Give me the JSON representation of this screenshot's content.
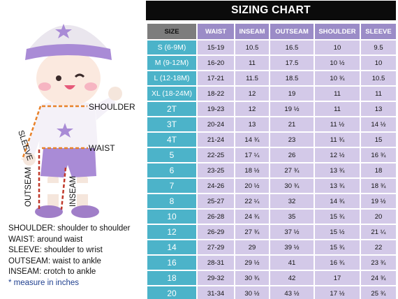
{
  "title": "SIZING CHART",
  "headers": [
    "SIZE",
    "WAIST",
    "INSEAM",
    "OUTSEAM",
    "SHOULDER",
    "SLEEVE"
  ],
  "rows": [
    [
      "S (6-9M)",
      "15-19",
      "10.5",
      "16.5",
      "10",
      "9.5"
    ],
    [
      "M (9-12M)",
      "16-20",
      "11",
      "17.5",
      "10 ½",
      "10"
    ],
    [
      "L (12-18M)",
      "17-21",
      "11.5",
      "18.5",
      "10 ¾",
      "10.5"
    ],
    [
      "XL (18-24M)",
      "18-22",
      "12",
      "19",
      "11",
      "11"
    ],
    [
      "2T",
      "19-23",
      "12",
      "19 ½",
      "11",
      "13"
    ],
    [
      "3T",
      "20-24",
      "13",
      "21",
      "11 ½",
      "14 ½"
    ],
    [
      "4T",
      "21-24",
      "14 ¾",
      "23",
      "11 ¾",
      "15"
    ],
    [
      "5",
      "22-25",
      "17 ¼",
      "26",
      "12 ½",
      "16 ¾"
    ],
    [
      "6",
      "23-25",
      "18 ½",
      "27 ¾",
      "13 ¾",
      "18"
    ],
    [
      "7",
      "24-26",
      "20 ½",
      "30 ¾",
      "13 ¾",
      "18 ¾"
    ],
    [
      "8",
      "25-27",
      "22 ¼",
      "32",
      "14 ¾",
      "19 ½"
    ],
    [
      "10",
      "26-28",
      "24 ¾",
      "35",
      "15 ¾",
      "20"
    ],
    [
      "12",
      "26-29",
      "27 ¾",
      "37 ½",
      "15 ½",
      "21 ¼"
    ],
    [
      "14",
      "27-29",
      "29",
      "39 ½",
      "15 ¾",
      "22"
    ],
    [
      "16",
      "28-31",
      "29 ½",
      "41",
      "16 ¾",
      "23 ¾"
    ],
    [
      "18",
      "29-32",
      "30 ¾",
      "42",
      "17",
      "24 ¾"
    ],
    [
      "20",
      "31-34",
      "30 ½",
      "43 ½",
      "17 ½",
      "25 ¾"
    ]
  ],
  "figure": {
    "labels": {
      "shoulder": "SHOULDER",
      "sleeve": "SLEEVE",
      "waist": "WAIST",
      "outseam": "OUTSEAM",
      "inseam": "INSEAM"
    }
  },
  "legend": {
    "shoulder": "SHOULDER: shoulder to shoulder",
    "waist": "WAIST: around waist",
    "sleeve": "SLEEVE: shoulder to wrist",
    "outseam": "OUTSEAM: waist to ankle",
    "inseam": "INSEAM: crotch to ankle",
    "note": "* measure in inches"
  },
  "colors": {
    "header_bg": "#9b8cc7",
    "size_header_bg": "#7d7d7d",
    "size_cell_bg": "#4cb3c9",
    "data_cell_bg": "#d3c9e8",
    "title_bg": "#0b0b0b",
    "measure_line": "#e8822a",
    "inseam_line": "#c0392b"
  }
}
